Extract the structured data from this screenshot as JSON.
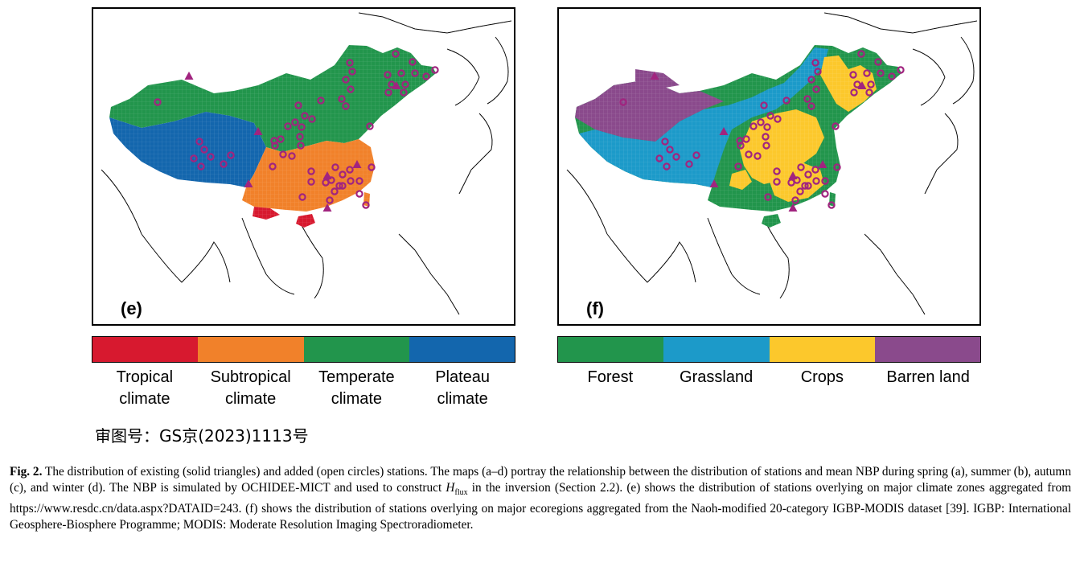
{
  "panels": [
    {
      "label": "(e)",
      "theme": "climate zones",
      "legend": [
        {
          "label": "Tropical climate",
          "color": "#d7192f"
        },
        {
          "label": "Subtropical climate",
          "color": "#f1812a"
        },
        {
          "label": "Temperate climate",
          "color": "#22954c"
        },
        {
          "label": "Plateau climate",
          "color": "#1366ad"
        }
      ]
    },
    {
      "label": "(f)",
      "theme": "ecoregions",
      "legend": [
        {
          "label": "Forest",
          "color": "#22954c"
        },
        {
          "label": "Grassland",
          "color": "#1c9ac9"
        },
        {
          "label": "Crops",
          "color": "#fcc82c"
        },
        {
          "label": "Barren land",
          "color": "#8a4a8c"
        }
      ]
    }
  ],
  "markers": {
    "existing_station": {
      "shape": "solid triangle",
      "color": "#a1247f"
    },
    "added_station": {
      "shape": "open circle",
      "color": "#a1247f"
    }
  },
  "approval_number": "审图号：GS京(2023)1113号",
  "caption": {
    "fig_label": "Fig. 2.",
    "part1": "The distribution of existing (solid triangles) and added (open circles) stations. The maps (a–d) portray the relationship between the distribution of stations and mean NBP during spring (a), summer (b), autumn (c), and winter (d). The NBP is simulated by OCHIDEE-MICT and used to construct ",
    "h_var": "H",
    "h_sub": "flux",
    "part2": " in the inversion (Section 2.2). (e) shows the distribution of stations overlying on major climate zones aggregated from https://www.resdc.cn/data.aspx?DATAID=243. (f) shows the distribution of stations overlying on major ecoregions aggregated from the Naoh-modified 20-category IGBP-MODIS dataset [39]. IGBP: International Geosphere-Biosphere Programme; MODIS: Moderate Resolution Imaging Spectroradiometer."
  }
}
